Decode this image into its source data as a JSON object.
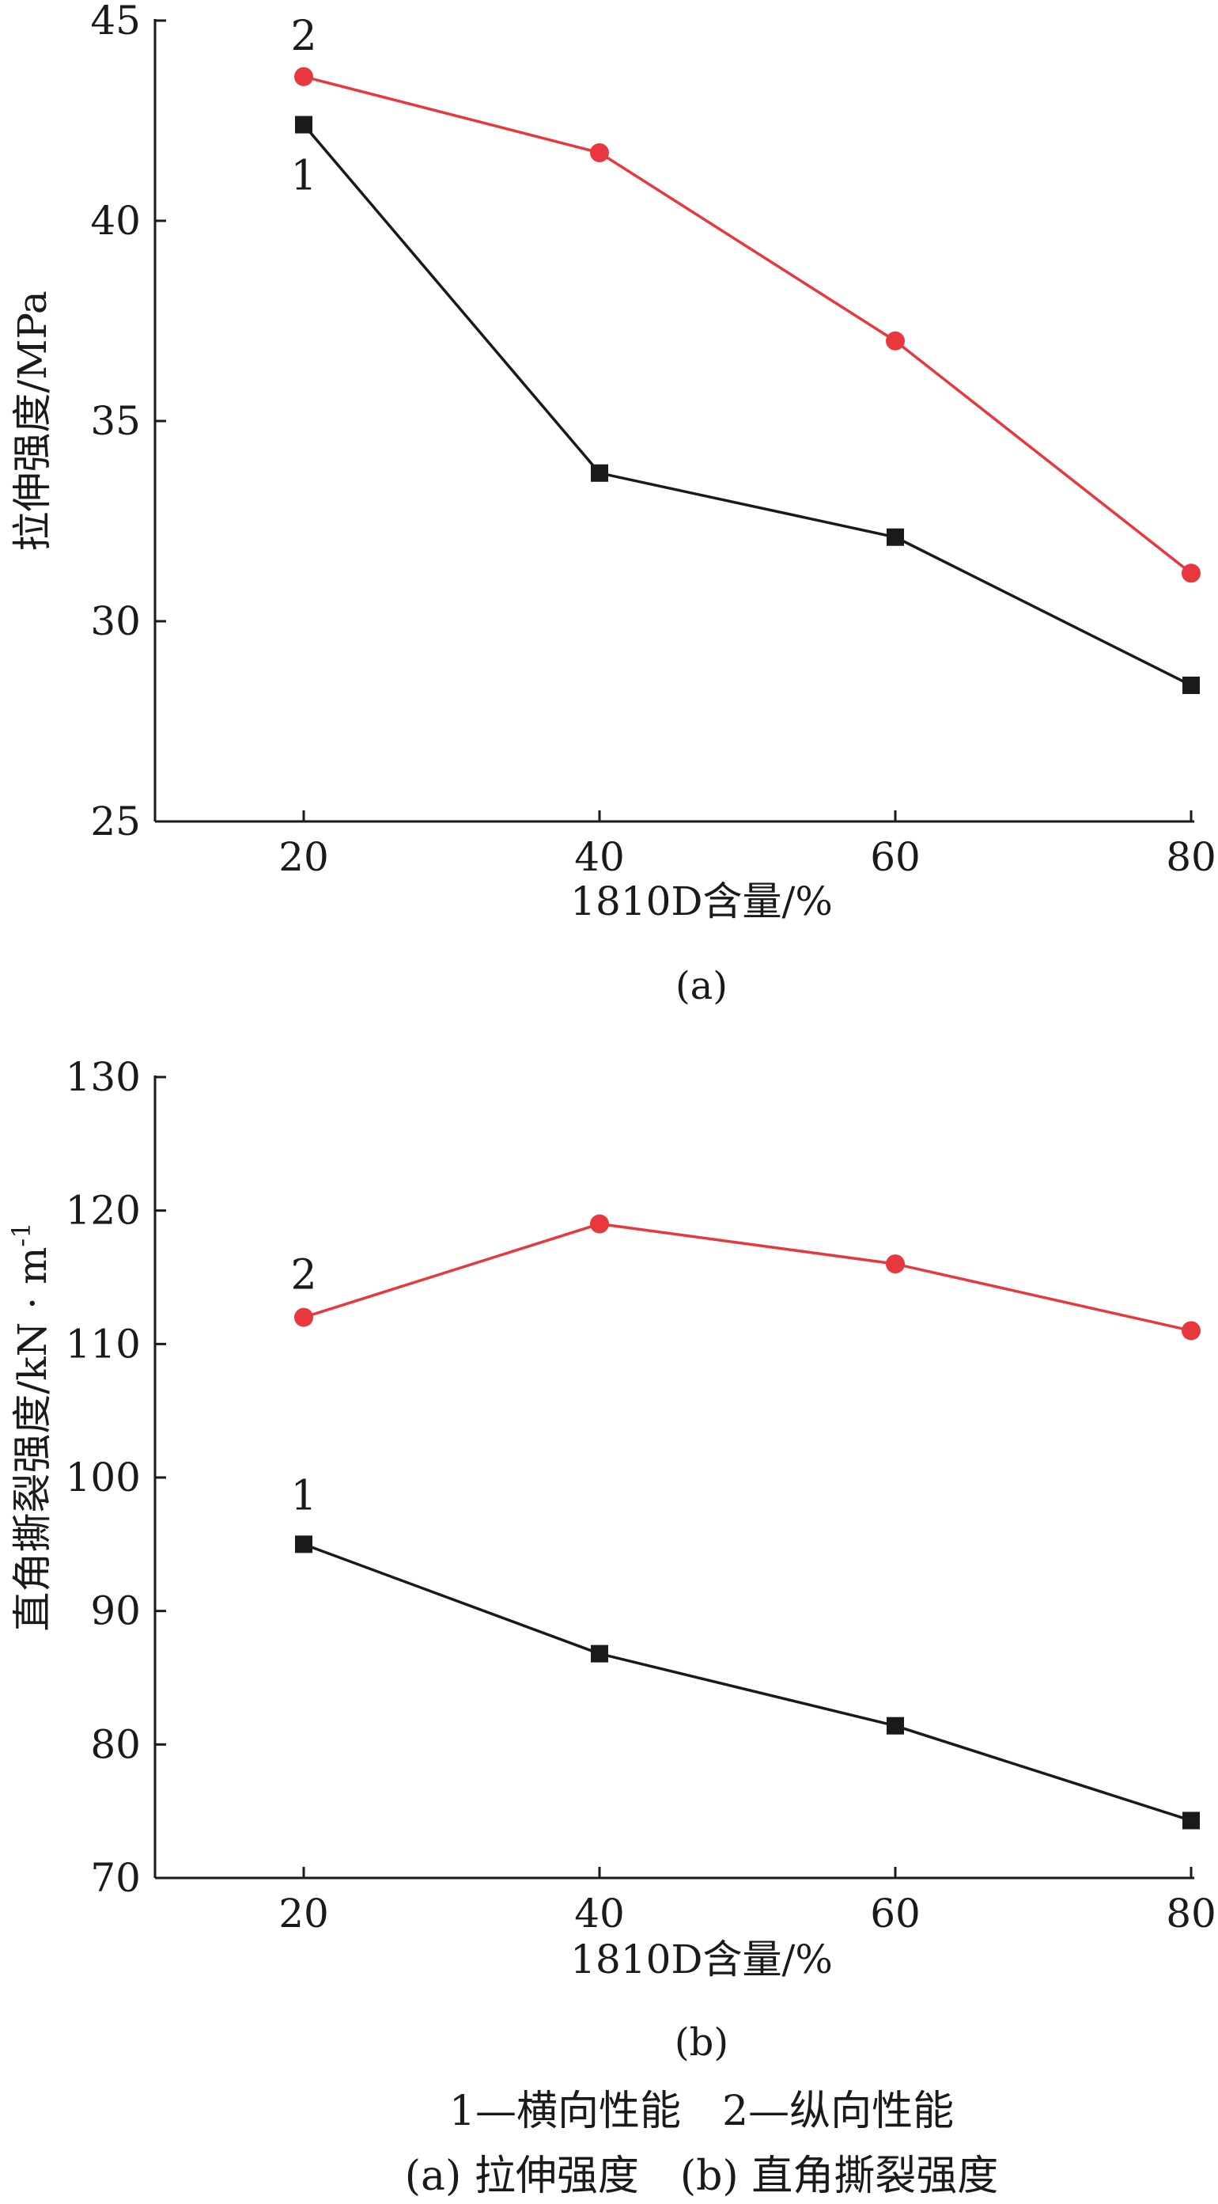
{
  "chart_data": [
    {
      "type": "line",
      "panel_label": "(a)",
      "xlabel": "1810D含量/%",
      "ylabel": "拉伸强度/MPa",
      "x": [
        20,
        40,
        60,
        80
      ],
      "x_tick_labels": [
        "20",
        "40",
        "60",
        "80"
      ],
      "ylim": [
        25,
        45
      ],
      "y_ticks": [
        25,
        30,
        35,
        40,
        45
      ],
      "y_tick_labels": [
        "25",
        "30",
        "35",
        "40",
        "45"
      ],
      "grid": false,
      "series": [
        {
          "name": "1",
          "label": "1",
          "marker": "square",
          "color": "#1a1a1a",
          "values": [
            42.4,
            33.7,
            32.1,
            28.4
          ]
        },
        {
          "name": "2",
          "label": "2",
          "marker": "circle",
          "color": "#e8383d",
          "values": [
            43.6,
            41.7,
            37.0,
            31.2
          ]
        }
      ]
    },
    {
      "type": "line",
      "panel_label": "(b)",
      "xlabel": "1810D含量/%",
      "ylabel": "直角撕裂强度/kN · m",
      "ylabel_superscript": "-1",
      "x": [
        20,
        40,
        60,
        80
      ],
      "x_tick_labels": [
        "20",
        "40",
        "60",
        "80"
      ],
      "ylim": [
        70,
        130
      ],
      "y_ticks": [
        70,
        80,
        90,
        100,
        110,
        120,
        130
      ],
      "y_tick_labels": [
        "70",
        "80",
        "90",
        "100",
        "110",
        "120",
        "130"
      ],
      "grid": false,
      "series": [
        {
          "name": "1",
          "label": "1",
          "marker": "square",
          "color": "#1a1a1a",
          "values": [
            95.0,
            86.8,
            81.4,
            74.3
          ]
        },
        {
          "name": "2",
          "label": "2",
          "marker": "circle",
          "color": "#e8383d",
          "values": [
            112.0,
            119.0,
            116.0,
            111.0
          ]
        }
      ]
    }
  ],
  "caption": {
    "legend_line": "1—横向性能　2—纵向性能",
    "subcaption_line": "(a) 拉伸强度　(b) 直角撕裂强度"
  }
}
